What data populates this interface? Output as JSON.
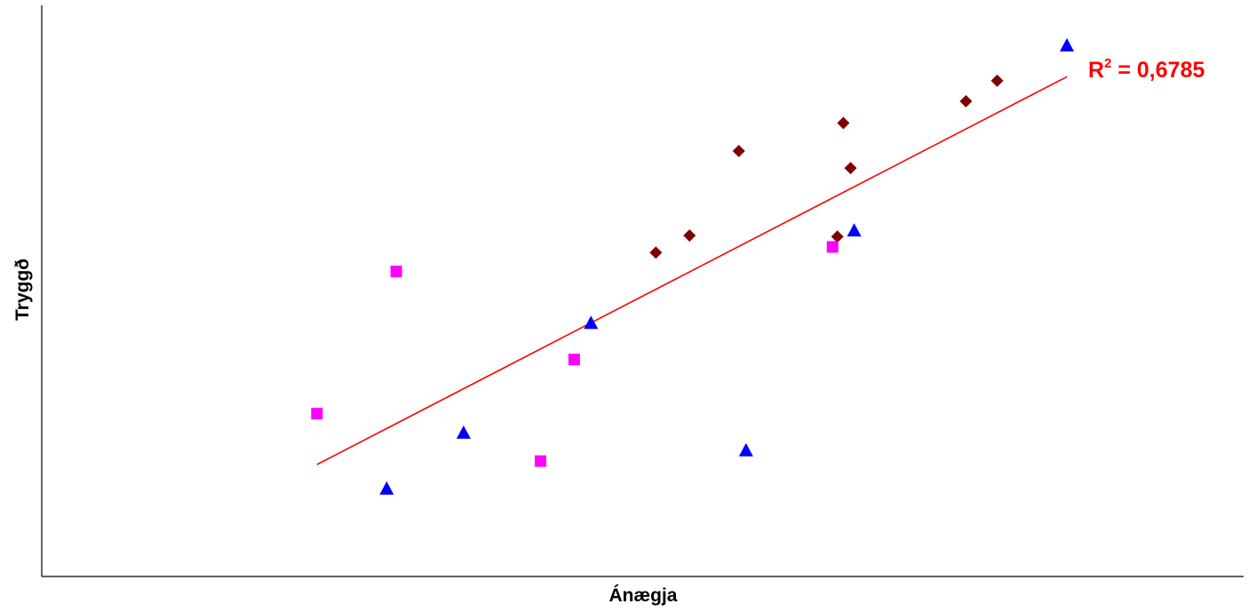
{
  "chart_data": {
    "type": "scatter",
    "title": "",
    "xlabel": "Ánægja",
    "ylabel": "Tryggð",
    "xlim": [
      0,
      100
    ],
    "ylim": [
      0,
      100
    ],
    "grid": false,
    "legend": "none",
    "series": [
      {
        "marker": "diamond",
        "color": "#800000",
        "points": [
          {
            "x": 51.1,
            "y": 56.7
          },
          {
            "x": 53.9,
            "y": 59.7
          },
          {
            "x": 58.0,
            "y": 74.5
          },
          {
            "x": 66.2,
            "y": 59.5
          },
          {
            "x": 66.7,
            "y": 79.4
          },
          {
            "x": 67.3,
            "y": 71.5
          },
          {
            "x": 76.9,
            "y": 83.2
          },
          {
            "x": 79.5,
            "y": 86.8
          }
        ]
      },
      {
        "marker": "square",
        "color": "#ff00ff",
        "points": [
          {
            "x": 22.9,
            "y": 28.5
          },
          {
            "x": 29.5,
            "y": 53.4
          },
          {
            "x": 41.5,
            "y": 20.2
          },
          {
            "x": 44.3,
            "y": 38.0
          },
          {
            "x": 65.8,
            "y": 57.7
          }
        ]
      },
      {
        "marker": "triangle",
        "color": "#0000ff",
        "points": [
          {
            "x": 28.7,
            "y": 15.5
          },
          {
            "x": 35.1,
            "y": 25.3
          },
          {
            "x": 45.7,
            "y": 44.5
          },
          {
            "x": 58.6,
            "y": 22.2
          },
          {
            "x": 67.6,
            "y": 60.7
          },
          {
            "x": 85.3,
            "y": 93.1
          }
        ]
      }
    ],
    "trendline": {
      "color": "#ff0000",
      "label": "R² = 0,6785",
      "r_squared": "0,6785",
      "x": [
        22.9,
        85.3
      ],
      "y": [
        19.6,
        87.5
      ]
    }
  }
}
